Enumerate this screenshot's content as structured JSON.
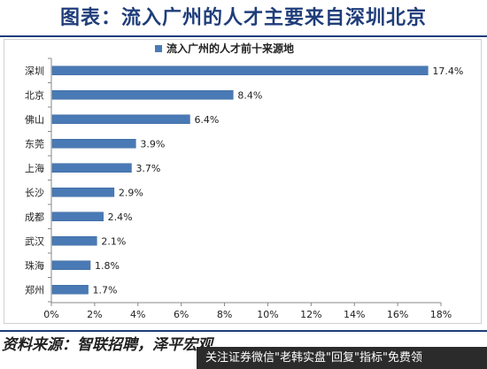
{
  "page_title": "图表：流入广州的人才主要来自深圳北京",
  "source_text": "资料来源：智联招聘，泽平宏观",
  "footer_text": "关注证券微信\"老韩实盘\"回复\"指标\"免费领",
  "colors": {
    "bar": "#4a7ab5",
    "title": "#1f3d7a"
  },
  "chart_data": {
    "type": "bar",
    "orientation": "horizontal",
    "title": "",
    "legend": {
      "label": "流入广州的人才前十来源地",
      "position": "top"
    },
    "categories": [
      "深圳",
      "北京",
      "佛山",
      "东莞",
      "上海",
      "长沙",
      "成都",
      "武汉",
      "珠海",
      "郑州"
    ],
    "values": [
      17.4,
      8.4,
      6.4,
      3.9,
      3.7,
      2.9,
      2.4,
      2.1,
      1.8,
      1.7
    ],
    "value_labels": [
      "17.4%",
      "8.4%",
      "6.4%",
      "3.9%",
      "3.7%",
      "2.9%",
      "2.4%",
      "2.1%",
      "1.8%",
      "1.7%"
    ],
    "x_ticks": [
      0,
      2,
      4,
      6,
      8,
      10,
      12,
      14,
      16,
      18
    ],
    "x_tick_labels": [
      "0%",
      "2%",
      "4%",
      "6%",
      "8%",
      "10%",
      "12%",
      "14%",
      "16%",
      "18%"
    ],
    "xlim": [
      0,
      18
    ],
    "grid": false
  }
}
